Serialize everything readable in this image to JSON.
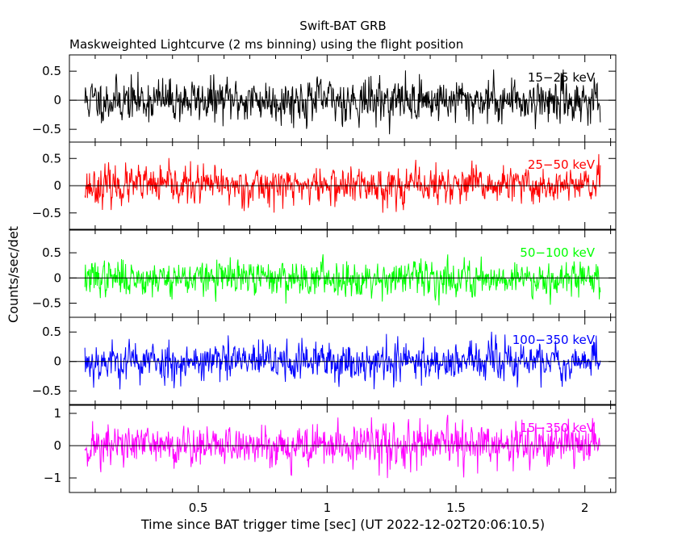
{
  "chart_data": {
    "type": "line",
    "title": "Swift-BAT GRB",
    "subtitle": "Maskweighted Lightcurve (2 ms binning) using the flight position",
    "xlabel": "Time since BAT trigger time [sec] (UT 2022-12-02T20:06:10.5)",
    "ylabel": "Counts/sec/det",
    "xlim": [
      0.0,
      2.12
    ],
    "x_ticks": [
      0.5,
      1,
      1.5,
      2
    ],
    "x_tick_labels": [
      "0.5",
      "1",
      "1.5",
      "2"
    ],
    "bin_size_sec": 0.002,
    "x_range_data": [
      0.06,
      2.06
    ],
    "panels": [
      {
        "name": "15-25 keV",
        "label": "15−25 keV",
        "color": "#000000",
        "ylim": [
          -0.72,
          0.78
        ],
        "y_ticks": [
          -0.5,
          0,
          0.5
        ],
        "y_tick_labels": [
          "−0.5",
          "0",
          "0.5"
        ],
        "amplitude": 0.24,
        "seed": 11
      },
      {
        "name": "25-50 keV",
        "label": "25−50 keV",
        "color": "#ff0000",
        "ylim": [
          -0.8,
          0.8
        ],
        "y_ticks": [
          -0.5,
          0,
          0.5
        ],
        "y_tick_labels": [
          "−0.5",
          "0",
          "0.5"
        ],
        "amplitude": 0.22,
        "seed": 23
      },
      {
        "name": "50-100 keV",
        "label": "50−100 keV",
        "color": "#00ff00",
        "ylim": [
          -0.78,
          0.95
        ],
        "y_ticks": [
          -0.5,
          0,
          0.5
        ],
        "y_tick_labels": [
          "−0.5",
          "0",
          "0.5"
        ],
        "amplitude": 0.22,
        "seed": 37
      },
      {
        "name": "100-350 keV",
        "label": "100−350 keV",
        "color": "#0000ff",
        "ylim": [
          -0.73,
          0.75
        ],
        "y_ticks": [
          -0.5,
          0,
          0.5
        ],
        "y_tick_labels": [
          "−0.5",
          "0",
          "0.5"
        ],
        "amplitude": 0.22,
        "seed": 53
      },
      {
        "name": "15-350 keV",
        "label": "15−350 keV",
        "color": "#ff00ff",
        "ylim": [
          -1.45,
          1.25
        ],
        "y_ticks": [
          -1,
          0,
          1
        ],
        "y_tick_labels": [
          "−1",
          "0",
          "1"
        ],
        "amplitude": 0.42,
        "seed": 71
      }
    ]
  }
}
